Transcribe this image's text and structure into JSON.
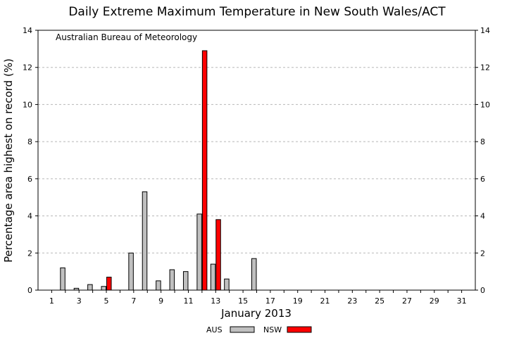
{
  "chart_data": {
    "type": "bar",
    "title": "Daily Extreme Maximum Temperature in New South Wales/ACT",
    "annotation": "Australian Bureau of Meteorology",
    "xlabel": "January 2013",
    "ylabel": "Percentage area highest on record (%)",
    "xlim": [
      0,
      32
    ],
    "ylim": [
      0,
      14
    ],
    "x_ticks": [
      1,
      3,
      5,
      7,
      9,
      11,
      13,
      15,
      17,
      19,
      21,
      23,
      25,
      27,
      29,
      31
    ],
    "y_ticks": [
      0,
      2,
      4,
      6,
      8,
      10,
      12,
      14
    ],
    "y_ticks_right": true,
    "grid": "horizontal dashed",
    "legend_position": "bottom-center",
    "categories": [
      1,
      2,
      3,
      4,
      5,
      6,
      7,
      8,
      9,
      10,
      11,
      12,
      13,
      14,
      15,
      16,
      17,
      18,
      19,
      20,
      21,
      22,
      23,
      24,
      25,
      26,
      27,
      28,
      29,
      30,
      31
    ],
    "series": [
      {
        "name": "AUS",
        "color": "#c0c0c0",
        "values": [
          0,
          1.2,
          0.1,
          0.3,
          0.2,
          0,
          2.0,
          5.3,
          0.5,
          1.1,
          1.0,
          4.1,
          1.4,
          0.6,
          0,
          1.7,
          0,
          0,
          0,
          0,
          0,
          0,
          0,
          0,
          0,
          0,
          0,
          0,
          0,
          0,
          0
        ]
      },
      {
        "name": "NSW",
        "color": "#ff0000",
        "values": [
          0,
          0,
          0,
          0,
          0.7,
          0,
          0,
          0,
          0,
          0,
          0,
          12.9,
          3.8,
          0,
          0,
          0,
          0,
          0,
          0,
          0,
          0,
          0,
          0,
          0,
          0,
          0,
          0,
          0,
          0,
          0,
          0
        ]
      }
    ]
  }
}
